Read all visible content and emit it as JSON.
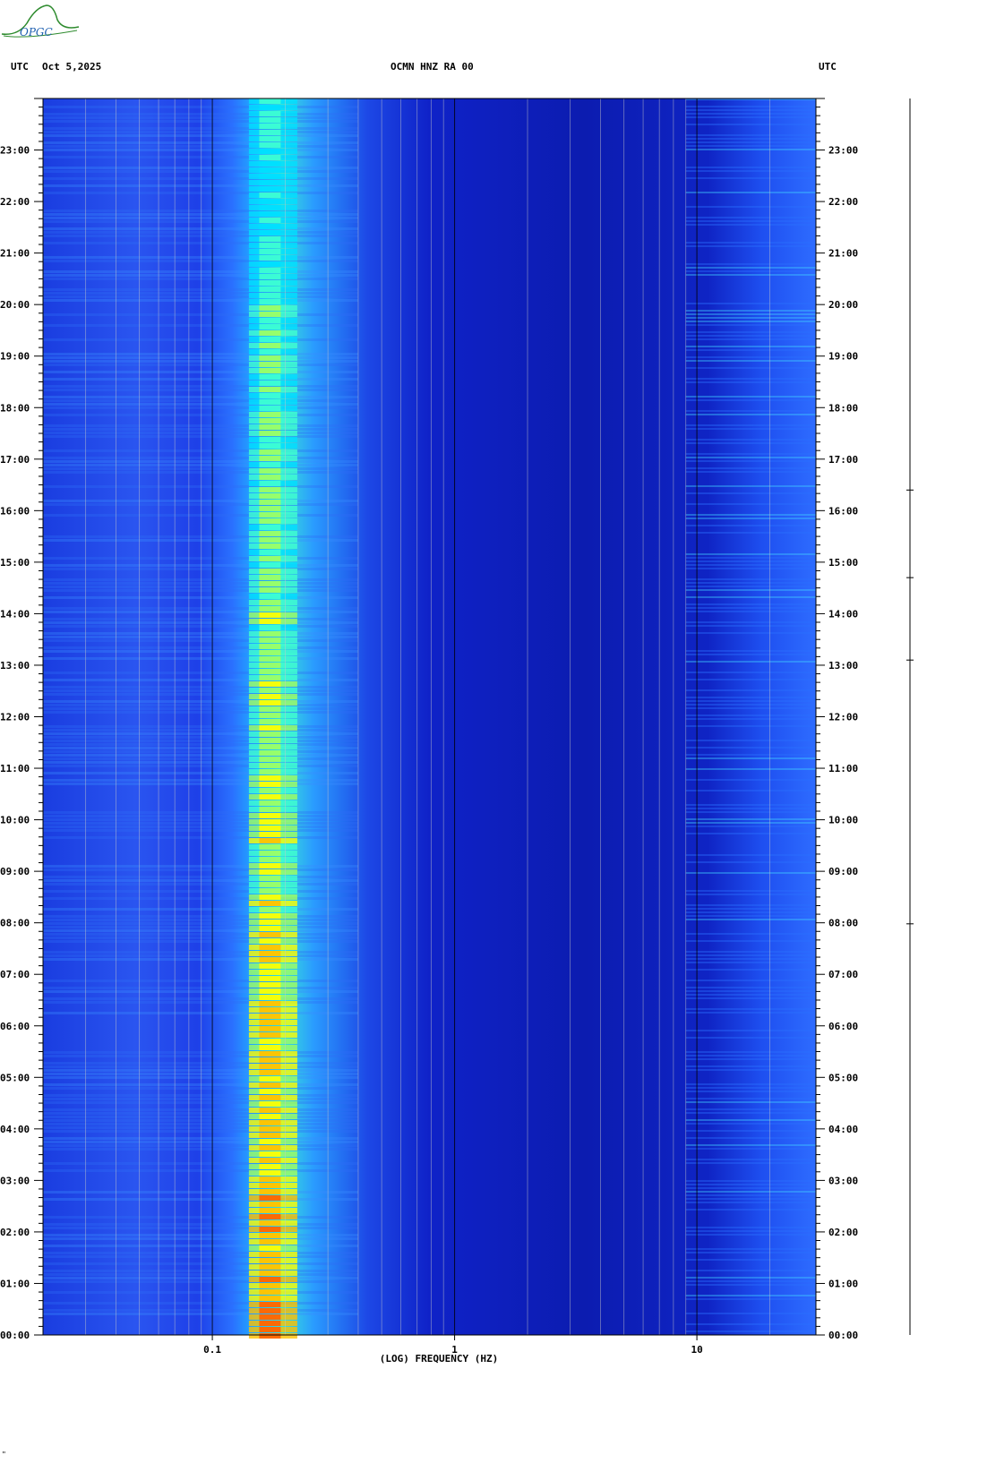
{
  "logo": {
    "text": "OPGC",
    "icon": "opgc-volcano-logo-icon"
  },
  "header": {
    "left_label": "UTC",
    "date": "Oct 5,2025",
    "station": "OCMN HNZ RA 00",
    "right_label": "UTC"
  },
  "footer": {
    "mark": "\""
  },
  "chart_data": {
    "type": "heatmap",
    "title": "OCMN HNZ RA 00",
    "xlabel": "(LOG) FREQUENCY (HZ)",
    "ylabel": "UTC",
    "x_scale": "log",
    "xlim": [
      0.02,
      31
    ],
    "ylim": [
      0,
      24
    ],
    "x_ticks": [
      {
        "value": 0.1,
        "label": "0.1"
      },
      {
        "value": 1,
        "label": "1"
      },
      {
        "value": 10,
        "label": "10"
      }
    ],
    "y_ticks": [
      {
        "value": 0,
        "label": "00:00"
      },
      {
        "value": 1,
        "label": "01:00"
      },
      {
        "value": 2,
        "label": "02:00"
      },
      {
        "value": 3,
        "label": "03:00"
      },
      {
        "value": 4,
        "label": "04:00"
      },
      {
        "value": 5,
        "label": "05:00"
      },
      {
        "value": 6,
        "label": "06:00"
      },
      {
        "value": 7,
        "label": "07:00"
      },
      {
        "value": 8,
        "label": "08:00"
      },
      {
        "value": 9,
        "label": "09:00"
      },
      {
        "value": 10,
        "label": "10:00"
      },
      {
        "value": 11,
        "label": "11:00"
      },
      {
        "value": 12,
        "label": "12:00"
      },
      {
        "value": 13,
        "label": "13:00"
      },
      {
        "value": 14,
        "label": "14:00"
      },
      {
        "value": 15,
        "label": "15:00"
      },
      {
        "value": 16,
        "label": "16:00"
      },
      {
        "value": 17,
        "label": "17:00"
      },
      {
        "value": 18,
        "label": "18:00"
      },
      {
        "value": 19,
        "label": "19:00"
      },
      {
        "value": 20,
        "label": "20:00"
      },
      {
        "value": 21,
        "label": "21:00"
      },
      {
        "value": 22,
        "label": "22:00"
      },
      {
        "value": 23,
        "label": "23:00"
      }
    ],
    "grid_frequencies": [
      0.03,
      0.04,
      0.05,
      0.06,
      0.07,
      0.08,
      0.09,
      0.1,
      0.2,
      0.3,
      0.4,
      0.5,
      0.6,
      0.7,
      0.8,
      0.9,
      1,
      2,
      3,
      4,
      5,
      6,
      7,
      8,
      9,
      10,
      20
    ],
    "microseism_band_hz": [
      0.13,
      0.3
    ],
    "microseism_peak_hz": 0.17,
    "high_freq_noise_band_hz": [
      10,
      31
    ],
    "colormap": [
      "#00008b",
      "#0000cd",
      "#0033ff",
      "#0099ff",
      "#00ffff",
      "#80ff80",
      "#ffff00",
      "#ff8000",
      "#ff0000"
    ]
  }
}
